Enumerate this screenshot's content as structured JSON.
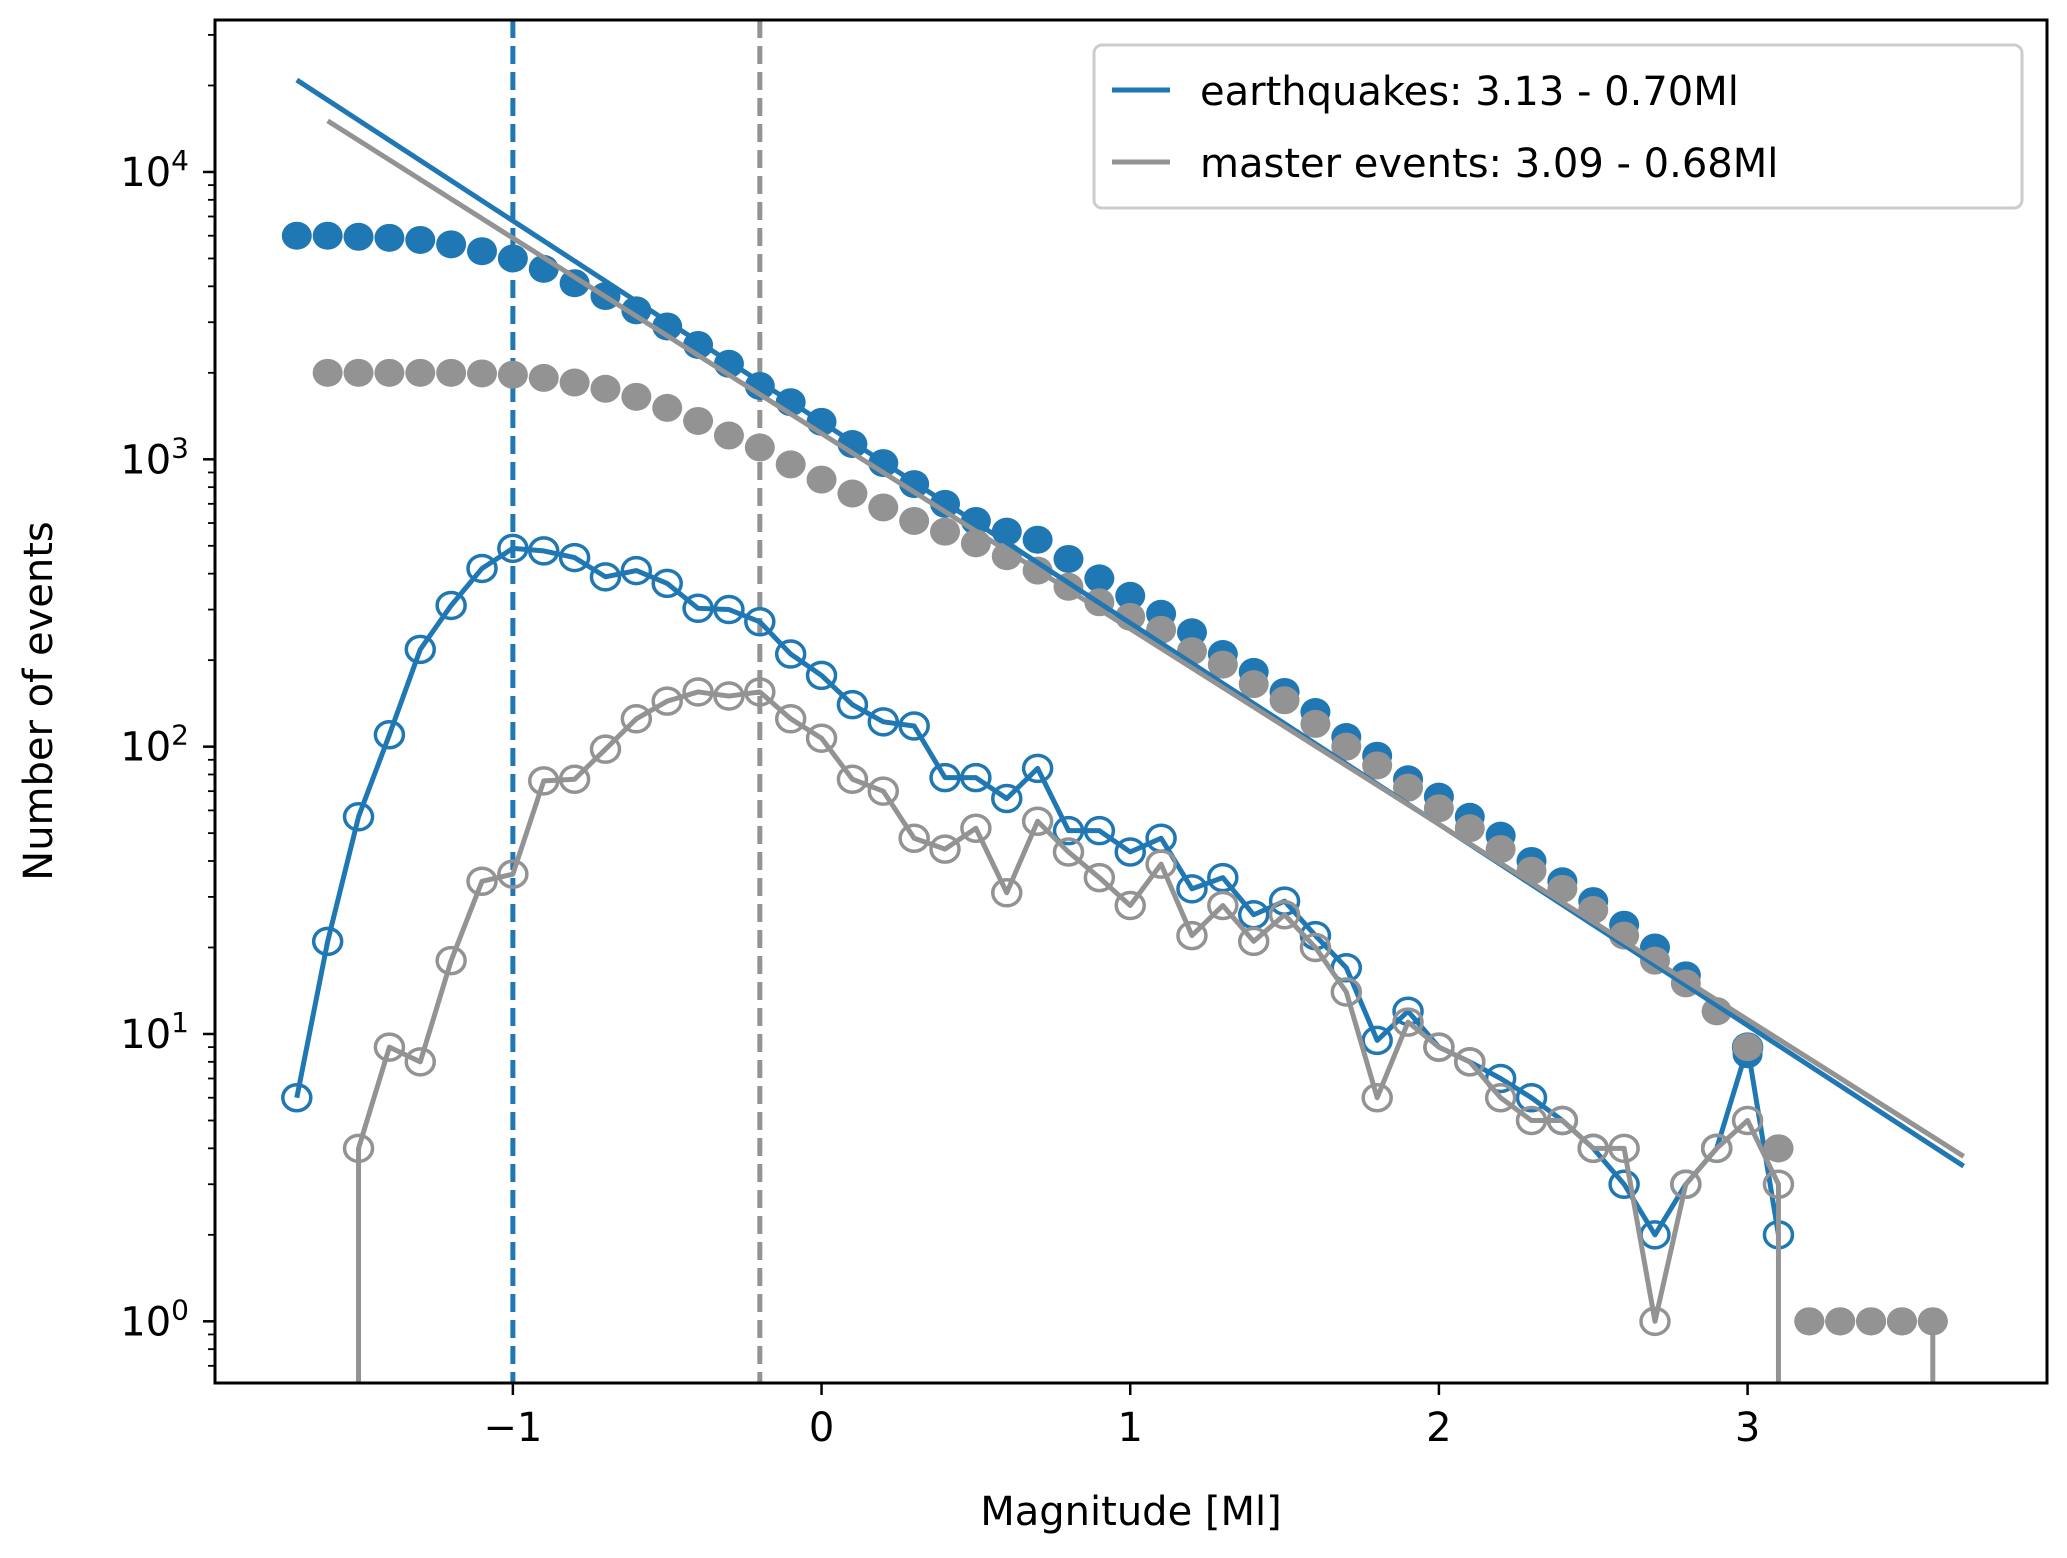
{
  "chart_data": {
    "type": "scatter",
    "title": "",
    "xlabel": "Magnitude [Ml]",
    "ylabel": "Number of events",
    "xscale": "linear",
    "yscale": "log",
    "xlim": [
      -1.965,
      3.97
    ],
    "ylim": [
      0.61,
      33800
    ],
    "grid": false,
    "x_ticks": [
      {
        "value": -1,
        "label": "−1"
      },
      {
        "value": 0,
        "label": "0"
      },
      {
        "value": 1,
        "label": "1"
      },
      {
        "value": 2,
        "label": "2"
      },
      {
        "value": 3,
        "label": "3"
      }
    ],
    "y_ticks": [
      {
        "value": 1,
        "base": "10",
        "exp": "0"
      },
      {
        "value": 10,
        "base": "10",
        "exp": "1"
      },
      {
        "value": 100,
        "base": "10",
        "exp": "2"
      },
      {
        "value": 1000,
        "base": "10",
        "exp": "3"
      },
      {
        "value": 10000,
        "base": "10",
        "exp": "4"
      }
    ],
    "legend": {
      "placement": "top-right",
      "entries": [
        {
          "label": "earthquakes: 3.13 - 0.70Ml",
          "color": "#1f77b4"
        },
        {
          "label": "master events: 3.09 - 0.68Ml",
          "color": "#939393"
        }
      ]
    },
    "colors": {
      "earthquakes": "#1f77b4",
      "master": "#939393"
    },
    "completeness_lines": [
      {
        "name": "earthquakes Mc",
        "x": -1.0,
        "color": "#1f77b4",
        "style": "dashed"
      },
      {
        "name": "master events Mc",
        "x": -0.2,
        "color": "#939393",
        "style": "dashed"
      }
    ],
    "fit_lines": [
      {
        "name": "earthquakes fit",
        "a": 3.13,
        "b": 0.7,
        "x_range": [
          -1.7,
          3.7
        ],
        "color": "#1f77b4"
      },
      {
        "name": "master events fit",
        "a": 3.09,
        "b": 0.68,
        "x_range": [
          -1.6,
          3.7
        ],
        "color": "#939393"
      }
    ],
    "series": [
      {
        "name": "earthquakes cumulative",
        "kind": "cumulative",
        "marker": "filled-circle",
        "line": false,
        "color": "#1f77b4",
        "x": [
          -1.7,
          -1.6,
          -1.5,
          -1.4,
          -1.3,
          -1.2,
          -1.1,
          -1.0,
          -0.9,
          -0.8,
          -0.7,
          -0.6,
          -0.5,
          -0.4,
          -0.3,
          -0.2,
          -0.1,
          0.0,
          0.1,
          0.2,
          0.3,
          0.4,
          0.5,
          0.6,
          0.7,
          0.8,
          0.9,
          1.0,
          1.1,
          1.2,
          1.3,
          1.4,
          1.5,
          1.6,
          1.7,
          1.8,
          1.9,
          2.0,
          2.1,
          2.2,
          2.3,
          2.4,
          2.5,
          2.6,
          2.7,
          2.8,
          2.9,
          3.0,
          3.1,
          3.2,
          3.3,
          3.4,
          3.5,
          3.6
        ],
        "y": [
          6000,
          6000,
          5950,
          5900,
          5800,
          5600,
          5300,
          5000,
          4600,
          4100,
          3700,
          3300,
          2900,
          2500,
          2150,
          1800,
          1580,
          1350,
          1130,
          970,
          820,
          700,
          610,
          560,
          525,
          450,
          385,
          335,
          290,
          250,
          210,
          182,
          155,
          132,
          108,
          93,
          77,
          67,
          57,
          49,
          40,
          34,
          29,
          24,
          20,
          16,
          12,
          8.5,
          4,
          1,
          1,
          1,
          1,
          1
        ]
      },
      {
        "name": "master events cumulative",
        "kind": "cumulative",
        "marker": "filled-circle",
        "line": false,
        "color": "#939393",
        "x": [
          -1.6,
          -1.5,
          -1.4,
          -1.3,
          -1.2,
          -1.1,
          -1.0,
          -0.9,
          -0.8,
          -0.7,
          -0.6,
          -0.5,
          -0.4,
          -0.3,
          -0.2,
          -0.1,
          0.0,
          0.1,
          0.2,
          0.3,
          0.4,
          0.5,
          0.6,
          0.7,
          0.8,
          0.9,
          1.0,
          1.1,
          1.2,
          1.3,
          1.4,
          1.5,
          1.6,
          1.7,
          1.8,
          1.9,
          2.0,
          2.1,
          2.2,
          2.3,
          2.4,
          2.5,
          2.6,
          2.7,
          2.8,
          2.9,
          3.0,
          3.1,
          3.2,
          3.3,
          3.4,
          3.5,
          3.6
        ],
        "y": [
          2000,
          2000,
          2000,
          2000,
          2000,
          1990,
          1970,
          1920,
          1850,
          1760,
          1650,
          1510,
          1360,
          1210,
          1100,
          960,
          850,
          760,
          680,
          610,
          560,
          510,
          460,
          410,
          360,
          318,
          283,
          255,
          215,
          193,
          165,
          145,
          120,
          100,
          86,
          72,
          61,
          52,
          44,
          37,
          32,
          27,
          22,
          18,
          15,
          12,
          9,
          4,
          1,
          1,
          1,
          1,
          1
        ],
        "drop_after_last": true
      },
      {
        "name": "earthquakes incremental",
        "kind": "incremental",
        "marker": "open-circle",
        "line": true,
        "color": "#1f77b4",
        "x": [
          -1.7,
          -1.6,
          -1.5,
          -1.4,
          -1.3,
          -1.2,
          -1.1,
          -1.0,
          -0.9,
          -0.8,
          -0.7,
          -0.6,
          -0.5,
          -0.4,
          -0.3,
          -0.2,
          -0.1,
          0.0,
          0.1,
          0.2,
          0.3,
          0.4,
          0.5,
          0.6,
          0.7,
          0.8,
          0.9,
          1.0,
          1.1,
          1.2,
          1.3,
          1.4,
          1.5,
          1.6,
          1.7,
          1.8,
          1.9,
          2.0,
          2.1,
          2.2,
          2.3,
          2.4,
          2.5,
          2.6,
          2.7,
          2.8,
          2.9,
          3.0,
          3.1
        ],
        "y": [
          6,
          21,
          57,
          110,
          218,
          310,
          417,
          490,
          480,
          455,
          390,
          410,
          370,
          303,
          300,
          272,
          210,
          177,
          140,
          122,
          118,
          78,
          78,
          66,
          84,
          51,
          51,
          43,
          48,
          32,
          35,
          26,
          29,
          22,
          17,
          9.5,
          12,
          9,
          8,
          7,
          6,
          5,
          4,
          3,
          2,
          3,
          4,
          9,
          2
        ]
      },
      {
        "name": "master events incremental",
        "kind": "incremental",
        "marker": "open-circle",
        "line": true,
        "color": "#939393",
        "x": [
          -1.5,
          -1.4,
          -1.3,
          -1.2,
          -1.1,
          -1.0,
          -0.9,
          -0.8,
          -0.7,
          -0.6,
          -0.5,
          -0.4,
          -0.3,
          -0.2,
          -0.1,
          0.0,
          0.1,
          0.2,
          0.3,
          0.4,
          0.5,
          0.6,
          0.7,
          0.8,
          0.9,
          1.0,
          1.1,
          1.2,
          1.3,
          1.4,
          1.5,
          1.6,
          1.7,
          1.8,
          1.9,
          2.0,
          2.1,
          2.2,
          2.3,
          2.4,
          2.5,
          2.6,
          2.7,
          2.8,
          2.9,
          3.0,
          3.1
        ],
        "y": [
          4,
          9,
          8,
          18,
          34,
          36,
          76,
          77,
          98,
          125,
          144,
          155,
          150,
          155,
          125,
          107,
          77,
          70,
          48,
          44,
          52,
          31,
          55,
          43,
          35,
          28,
          39,
          22,
          28,
          21,
          26,
          20,
          14,
          6,
          11,
          9,
          8,
          6,
          5,
          5,
          4,
          4,
          1,
          3,
          4,
          5,
          3
        ],
        "drop_before_first": true,
        "drop_after_last": true
      }
    ]
  }
}
